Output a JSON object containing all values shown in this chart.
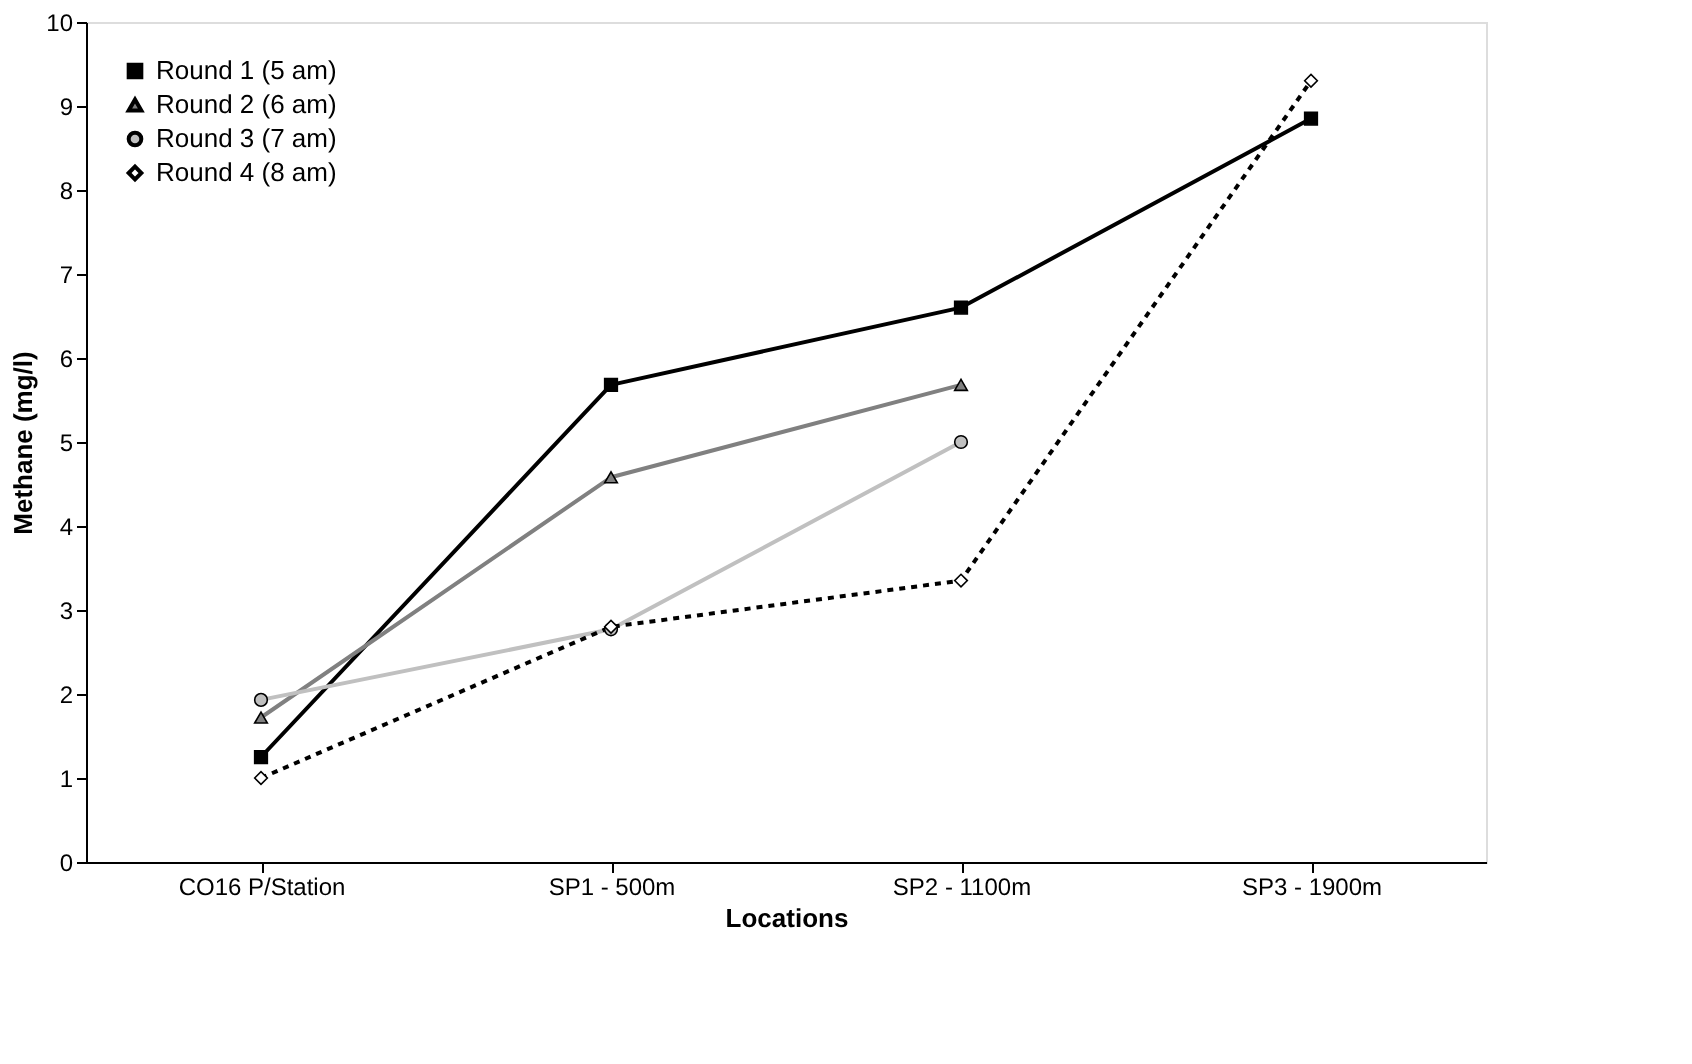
{
  "chart_data": {
    "type": "line",
    "xlabel": "Locations",
    "ylabel": "Methane (mg/l)",
    "categories": [
      "CO16 P/Station",
      "SP1 - 500m",
      "SP2 - 1100m",
      "SP3 - 1900m"
    ],
    "series": [
      {
        "name": "Round 1 (5 am)",
        "color": "#000000",
        "marker": "square",
        "line_style": "solid",
        "values": [
          1.25,
          5.68,
          6.6,
          8.85
        ]
      },
      {
        "name": "Round 2 (6 am)",
        "color": "#808080",
        "marker": "triangle",
        "line_style": "solid",
        "values": [
          1.72,
          4.58,
          5.68,
          null
        ]
      },
      {
        "name": "Round 3 (7 am)",
        "color": "#c0c0c0",
        "marker": "circle",
        "line_style": "solid",
        "values": [
          1.93,
          2.77,
          5.0,
          null
        ]
      },
      {
        "name": "Round 4 (8 am)",
        "color": "#000000",
        "marker": "diamond",
        "line_style": "dotted",
        "values": [
          1.0,
          2.8,
          3.35,
          9.3
        ]
      }
    ],
    "ylim": [
      0,
      10
    ],
    "yticks": [
      0,
      1,
      2,
      3,
      4,
      5,
      6,
      7,
      8,
      9,
      10
    ],
    "grid": false,
    "legend": "top left"
  }
}
